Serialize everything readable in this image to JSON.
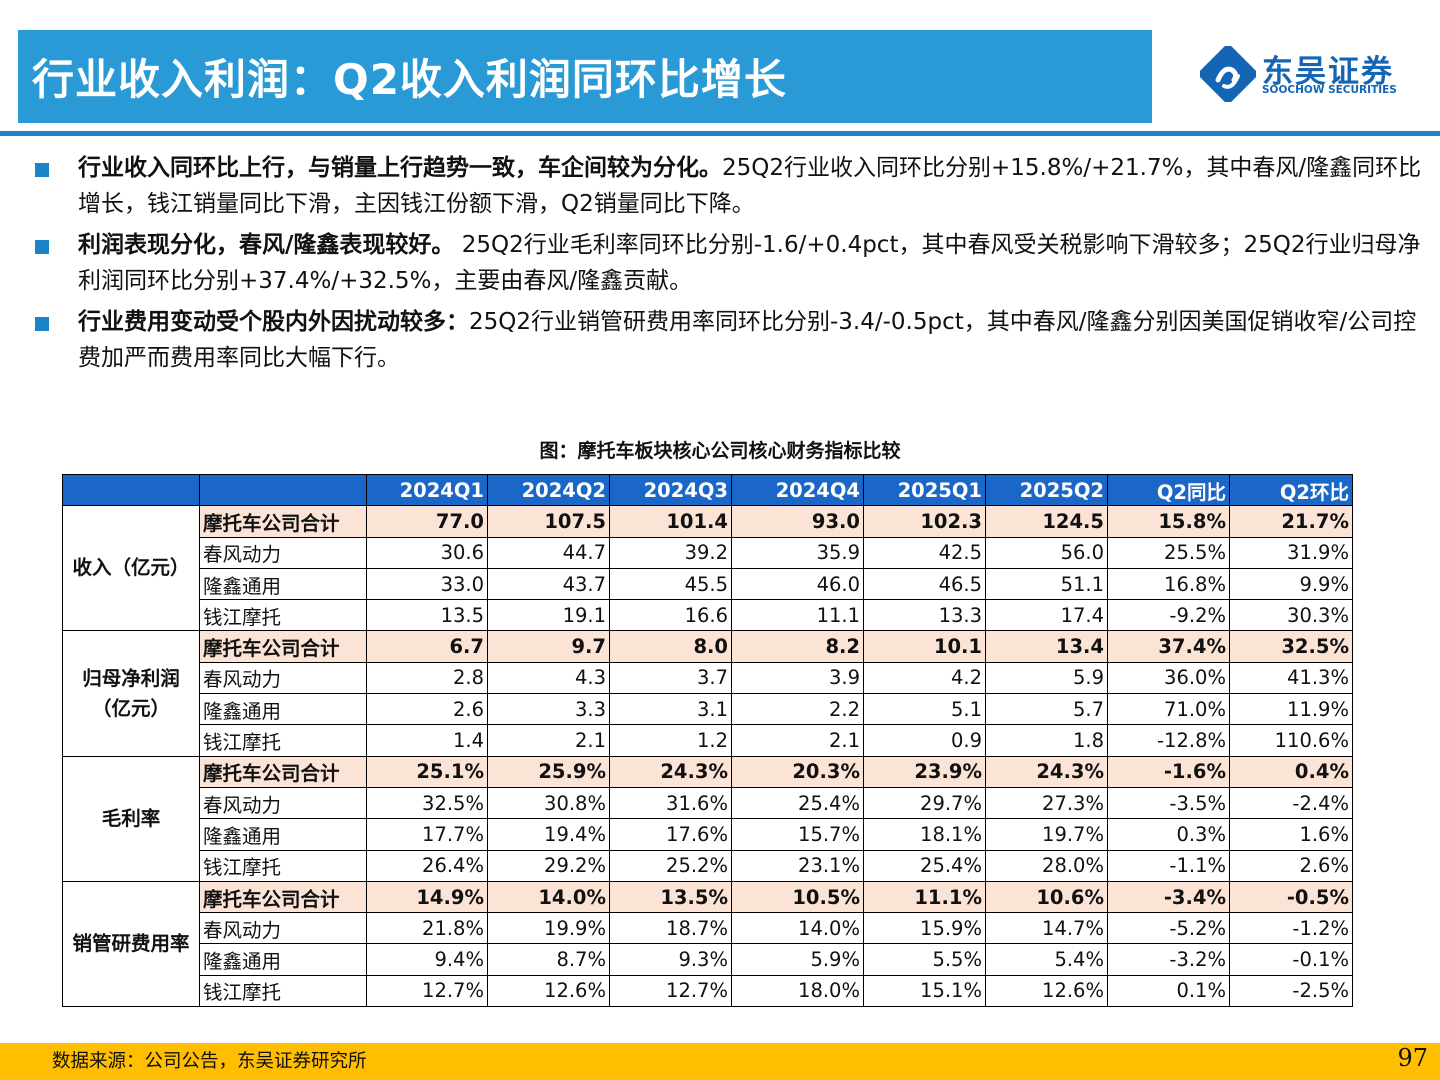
{
  "title": "行业收入利润：Q2收入利润同环比增长",
  "logo": {
    "cn": "东吴证券",
    "en": "SOOCHOW SECURITIES"
  },
  "colors": {
    "title_bar": "#2a9ad6",
    "header_row": "#1b67c8",
    "total_row": "#fbe3d6",
    "footer": "#ffbf00",
    "accent": "#1b84c9"
  },
  "bullets": [
    {
      "bold": "行业收入同环比上行，与销量上行趋势一致，车企间较为分化。",
      "text": "25Q2行业收入同环比分别+15.8%/+21.7%，其中春风/隆鑫同环比增长，钱江销量同比下滑，主因钱江份额下滑，Q2销量同比下降。"
    },
    {
      "bold": "利润表现分化，春风/隆鑫表现较好。",
      "text": " 25Q2行业毛利率同环比分别-1.6/+0.4pct，其中春风受关税影响下滑较多；25Q2行业归母净利润同环比分别+37.4%/+32.5%，主要由春风/隆鑫贡献。"
    },
    {
      "bold": "行业费用变动受个股内外因扰动较多：",
      "text": "25Q2行业销管研费用率同环比分别-3.4/-0.5pct，其中春风/隆鑫分别因美国促销收窄/公司控费加严而费用率同比大幅下行。"
    }
  ],
  "figure_title": "图：摩托车板块核心公司核心财务指标比较",
  "table": {
    "columns": [
      "2024Q1",
      "2024Q2",
      "2024Q3",
      "2024Q4",
      "2025Q1",
      "2025Q2",
      "Q2同比",
      "Q2环比"
    ],
    "groups": [
      {
        "metric": "收入（亿元）",
        "rows": [
          {
            "name": "摩托车公司合计",
            "total": true,
            "values": [
              "77.0",
              "107.5",
              "101.4",
              "93.0",
              "102.3",
              "124.5",
              "15.8%",
              "21.7%"
            ]
          },
          {
            "name": "春风动力",
            "values": [
              "30.6",
              "44.7",
              "39.2",
              "35.9",
              "42.5",
              "56.0",
              "25.5%",
              "31.9%"
            ]
          },
          {
            "name": "隆鑫通用",
            "values": [
              "33.0",
              "43.7",
              "45.5",
              "46.0",
              "46.5",
              "51.1",
              "16.8%",
              "9.9%"
            ]
          },
          {
            "name": "钱江摩托",
            "values": [
              "13.5",
              "19.1",
              "16.6",
              "11.1",
              "13.3",
              "17.4",
              "-9.2%",
              "30.3%"
            ]
          }
        ]
      },
      {
        "metric": "归母净利润（亿元）",
        "rows": [
          {
            "name": "摩托车公司合计",
            "total": true,
            "values": [
              "6.7",
              "9.7",
              "8.0",
              "8.2",
              "10.1",
              "13.4",
              "37.4%",
              "32.5%"
            ]
          },
          {
            "name": "春风动力",
            "values": [
              "2.8",
              "4.3",
              "3.7",
              "3.9",
              "4.2",
              "5.9",
              "36.0%",
              "41.3%"
            ]
          },
          {
            "name": "隆鑫通用",
            "values": [
              "2.6",
              "3.3",
              "3.1",
              "2.2",
              "5.1",
              "5.7",
              "71.0%",
              "11.9%"
            ]
          },
          {
            "name": "钱江摩托",
            "values": [
              "1.4",
              "2.1",
              "1.2",
              "2.1",
              "0.9",
              "1.8",
              "-12.8%",
              "110.6%"
            ]
          }
        ]
      },
      {
        "metric": "毛利率",
        "rows": [
          {
            "name": "摩托车公司合计",
            "total": true,
            "values": [
              "25.1%",
              "25.9%",
              "24.3%",
              "20.3%",
              "23.9%",
              "24.3%",
              "-1.6%",
              "0.4%"
            ]
          },
          {
            "name": "春风动力",
            "values": [
              "32.5%",
              "30.8%",
              "31.6%",
              "25.4%",
              "29.7%",
              "27.3%",
              "-3.5%",
              "-2.4%"
            ]
          },
          {
            "name": "隆鑫通用",
            "values": [
              "17.7%",
              "19.4%",
              "17.6%",
              "15.7%",
              "18.1%",
              "19.7%",
              "0.3%",
              "1.6%"
            ]
          },
          {
            "name": "钱江摩托",
            "values": [
              "26.4%",
              "29.2%",
              "25.2%",
              "23.1%",
              "25.4%",
              "28.0%",
              "-1.1%",
              "2.6%"
            ]
          }
        ]
      },
      {
        "metric": "销管研费用率",
        "rows": [
          {
            "name": "摩托车公司合计",
            "total": true,
            "values": [
              "14.9%",
              "14.0%",
              "13.5%",
              "10.5%",
              "11.1%",
              "10.6%",
              "-3.4%",
              "-0.5%"
            ]
          },
          {
            "name": "春风动力",
            "values": [
              "21.8%",
              "19.9%",
              "18.7%",
              "14.0%",
              "15.9%",
              "14.7%",
              "-5.2%",
              "-1.2%"
            ]
          },
          {
            "name": "隆鑫通用",
            "values": [
              "9.4%",
              "8.7%",
              "9.3%",
              "5.9%",
              "5.5%",
              "5.4%",
              "-3.2%",
              "-0.1%"
            ]
          },
          {
            "name": "钱江摩托",
            "values": [
              "12.7%",
              "12.6%",
              "12.7%",
              "18.0%",
              "15.1%",
              "12.6%",
              "0.1%",
              "-2.5%"
            ]
          }
        ]
      }
    ]
  },
  "source": "数据来源：公司公告，东吴证券研究所",
  "page_number": "97"
}
